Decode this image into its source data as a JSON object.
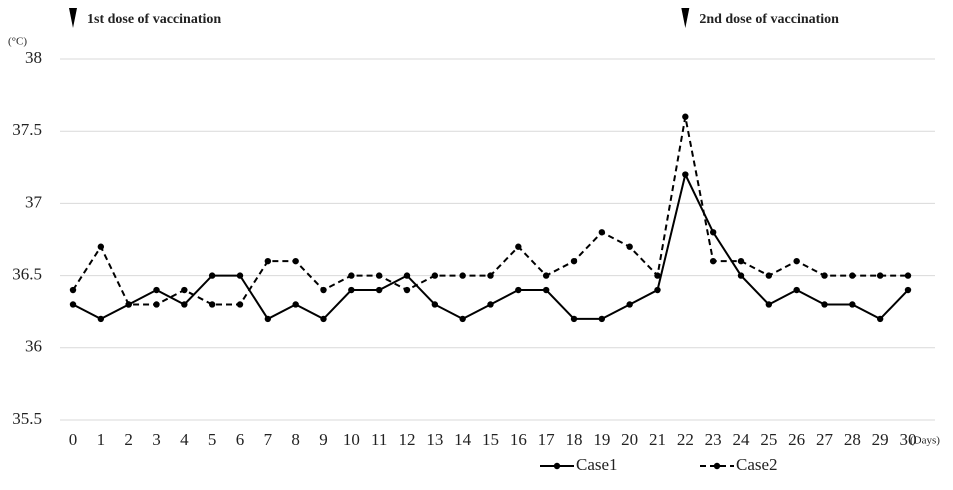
{
  "chart_data": {
    "type": "line",
    "x_label": "(Days)",
    "y_label": "(°C)",
    "x": [
      0,
      1,
      2,
      3,
      4,
      5,
      6,
      7,
      8,
      9,
      10,
      11,
      12,
      13,
      14,
      15,
      16,
      17,
      18,
      19,
      20,
      21,
      22,
      23,
      24,
      25,
      26,
      27,
      28,
      29,
      30
    ],
    "series": [
      {
        "name": "Case1",
        "color": "#000000",
        "dash": false,
        "values": [
          36.3,
          36.2,
          36.3,
          36.4,
          36.3,
          36.5,
          36.5,
          36.2,
          36.3,
          36.2,
          36.4,
          36.4,
          36.5,
          36.3,
          36.2,
          36.3,
          36.4,
          36.4,
          36.2,
          36.2,
          36.3,
          36.4,
          37.2,
          36.8,
          36.5,
          36.3,
          36.4,
          36.3,
          36.3,
          36.2,
          36.4
        ]
      },
      {
        "name": "Case2",
        "color": "#000000",
        "dash": true,
        "values": [
          36.4,
          36.7,
          36.3,
          36.3,
          36.4,
          36.3,
          36.3,
          36.6,
          36.6,
          36.4,
          36.5,
          36.5,
          36.4,
          36.5,
          36.5,
          36.5,
          36.7,
          36.5,
          36.6,
          36.8,
          36.7,
          36.5,
          37.6,
          36.6,
          36.6,
          36.5,
          36.6,
          36.5,
          36.5,
          36.5,
          36.5
        ]
      }
    ],
    "annotations": [
      {
        "text": "1st dose of vaccination",
        "x": 0
      },
      {
        "text": "2nd dose of vaccination",
        "x": 22
      }
    ],
    "xlim": [
      0,
      30
    ],
    "xticks": [
      0,
      1,
      2,
      3,
      4,
      5,
      6,
      7,
      8,
      9,
      10,
      11,
      12,
      13,
      14,
      15,
      16,
      17,
      18,
      19,
      20,
      21,
      22,
      23,
      24,
      25,
      26,
      27,
      28,
      29,
      30
    ],
    "ylim": [
      35.5,
      38
    ],
    "yticks": [
      35.5,
      36,
      36.5,
      37,
      37.5,
      38
    ],
    "grid": true,
    "legend": "bottom"
  }
}
